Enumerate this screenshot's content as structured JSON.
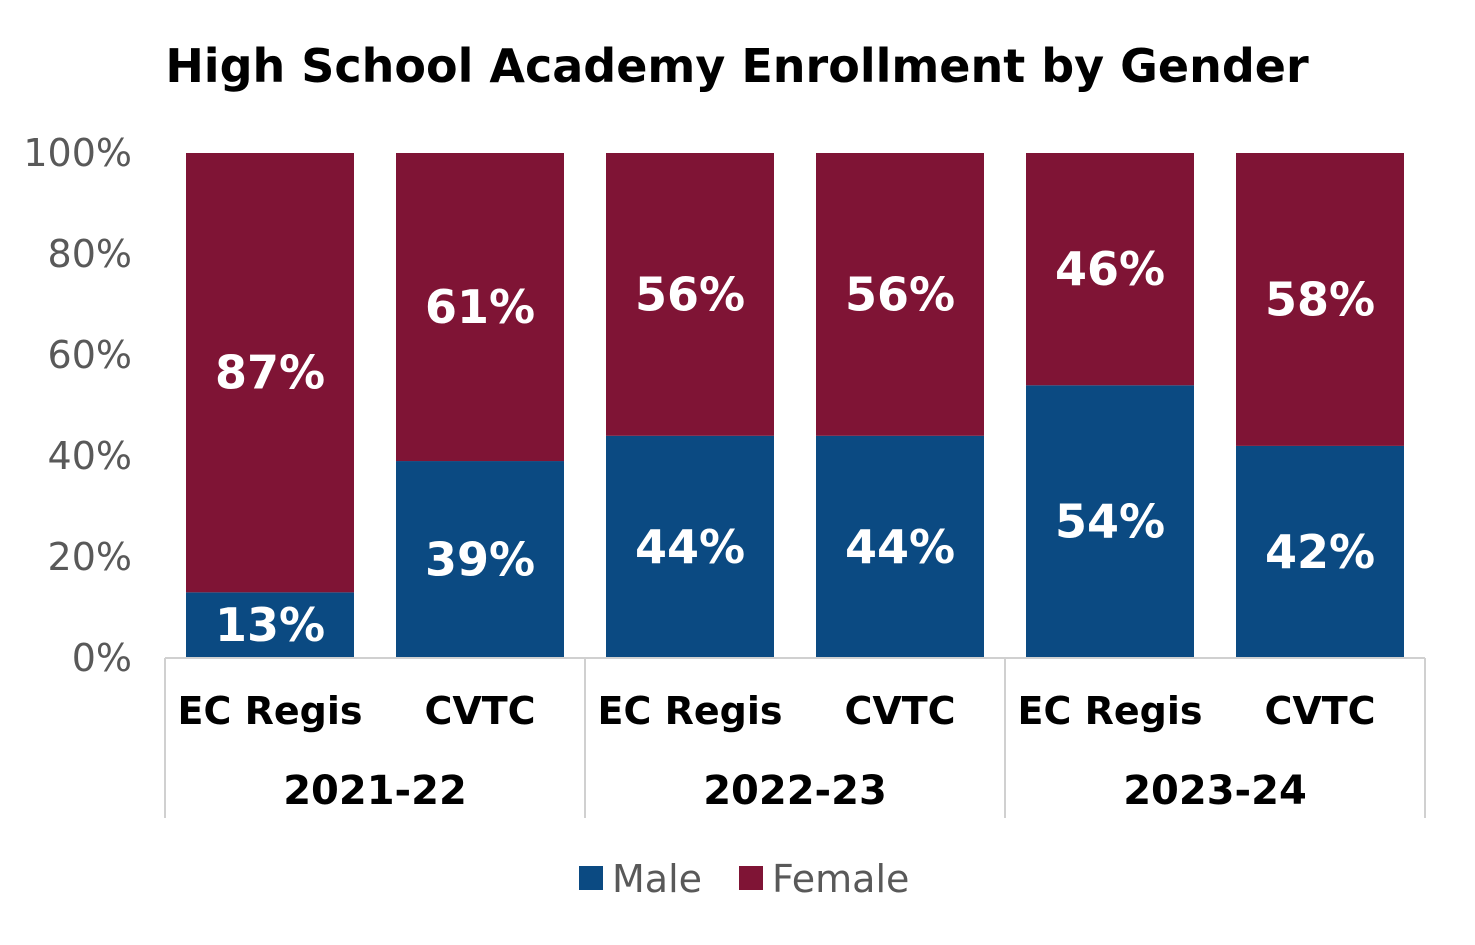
{
  "chart_data": {
    "type": "bar",
    "stacked": true,
    "percent_stacked": true,
    "title": "High School Academy Enrollment by Gender",
    "xlabel": "",
    "ylabel": "",
    "ylim": [
      0,
      100
    ],
    "y_ticks": [
      "0%",
      "20%",
      "40%",
      "60%",
      "80%",
      "100%"
    ],
    "y_tick_values": [
      0,
      20,
      40,
      60,
      80,
      100
    ],
    "groups": [
      {
        "label": "2021-22",
        "categories": [
          "EC Regis",
          "CVTC"
        ]
      },
      {
        "label": "2022-23",
        "categories": [
          "EC Regis",
          "CVTC"
        ]
      },
      {
        "label": "2023-24",
        "categories": [
          "EC Regis",
          "CVTC"
        ]
      }
    ],
    "categories": [
      "EC Regis",
      "CVTC",
      "EC Regis",
      "CVTC",
      "EC Regis",
      "CVTC"
    ],
    "series": [
      {
        "name": "Male",
        "color": "#0b4a82",
        "values": [
          13,
          39,
          44,
          44,
          54,
          42
        ],
        "labels": [
          "13%",
          "39%",
          "44%",
          "44%",
          "54%",
          "42%"
        ]
      },
      {
        "name": "Female",
        "color": "#7f1435",
        "values": [
          87,
          61,
          56,
          56,
          46,
          58
        ],
        "labels": [
          "87%",
          "61%",
          "56%",
          "56%",
          "46%",
          "58%"
        ]
      }
    ],
    "legend": {
      "position": "bottom",
      "entries": [
        "Male",
        "Female"
      ]
    },
    "grid": false
  }
}
